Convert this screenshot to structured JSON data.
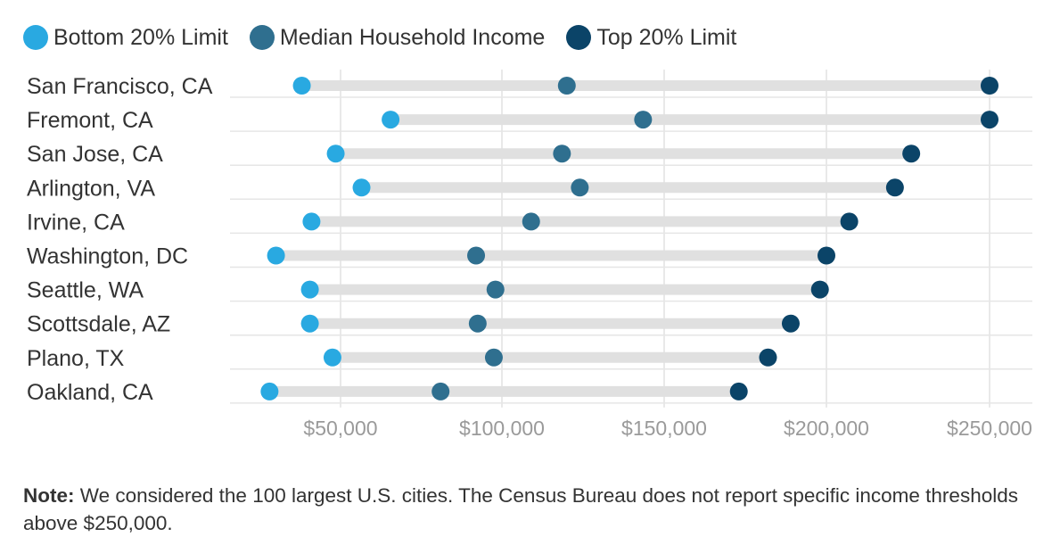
{
  "legend": [
    {
      "label": "Bottom 20% Limit",
      "color": "#29a9e1"
    },
    {
      "label": "Median Household Income",
      "color": "#2f6f8f"
    },
    {
      "label": "Top 20% Limit",
      "color": "#0b4468"
    }
  ],
  "chart_data": {
    "type": "dumbbell",
    "title": "",
    "xlabel": "",
    "ylabel": "",
    "grid": true,
    "legend_position": "top-left",
    "categories": [
      "San Francisco, CA",
      "Fremont, CA",
      "San Jose, CA",
      "Arlington, VA",
      "Irvine, CA",
      "Washington, DC",
      "Seattle, WA",
      "Scottsdale, AZ",
      "Plano, TX",
      "Oakland, CA"
    ],
    "x_ticks": [
      {
        "value": 50000,
        "label": "$50,000"
      },
      {
        "value": 100000,
        "label": "$100,000"
      },
      {
        "value": 150000,
        "label": "$150,000"
      },
      {
        "value": 200000,
        "label": "$200,000"
      },
      {
        "value": 250000,
        "label": "$250,000"
      }
    ],
    "series": [
      {
        "name": "Bottom 20% Limit",
        "color": "#29a9e1",
        "values": [
          38000,
          65500,
          48500,
          56500,
          41000,
          30000,
          40500,
          40500,
          47500,
          28000
        ]
      },
      {
        "name": "Median Household Income",
        "color": "#2f6f8f",
        "values": [
          120000,
          143500,
          118500,
          124000,
          109000,
          92000,
          98000,
          92500,
          97500,
          81000
        ]
      },
      {
        "name": "Top 20% Limit",
        "color": "#0b4468",
        "values": [
          250000,
          250000,
          226000,
          221000,
          207000,
          200000,
          198000,
          189000,
          182000,
          173000
        ]
      }
    ]
  },
  "note": {
    "label": "Note:",
    "text": " We considered the 100 largest U.S. cities. The Census Bureau does not report specific income thresholds above $250,000."
  }
}
